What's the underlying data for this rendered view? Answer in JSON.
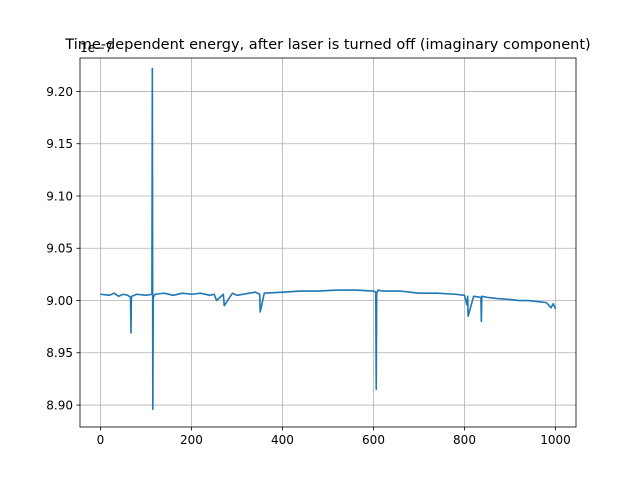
{
  "chart_data": {
    "type": "line",
    "title": "Time-dependent energy, after laser is turned off (imaginary component)",
    "xlabel": "",
    "ylabel": "",
    "y_offset_label": "1e−7",
    "xlim": [
      -45,
      1045
    ],
    "ylim": [
      8.879,
      9.232
    ],
    "grid": true,
    "x_ticks": [
      0,
      200,
      400,
      600,
      800,
      1000
    ],
    "x_tick_labels": [
      "0",
      "200",
      "400",
      "600",
      "800",
      "1000"
    ],
    "y_ticks": [
      8.9,
      8.95,
      9.0,
      9.05,
      9.1,
      9.15,
      9.2
    ],
    "y_tick_labels": [
      "8.90",
      "8.95",
      "9.00",
      "9.05",
      "9.10",
      "9.15",
      "9.20"
    ],
    "series": [
      {
        "name": "",
        "color": "#1f77b4",
        "x": [
          0,
          20,
          30,
          40,
          50,
          60,
          66,
          67,
          68,
          80,
          100,
          113,
          114,
          115,
          116,
          120,
          140,
          160,
          180,
          200,
          220,
          240,
          250,
          255,
          270,
          272,
          290,
          300,
          340,
          350,
          351,
          360,
          400,
          440,
          480,
          520,
          560,
          600,
          605,
          606,
          607,
          610,
          620,
          660,
          700,
          740,
          780,
          800,
          805,
          807,
          808,
          820,
          836,
          837,
          838,
          850,
          870,
          900,
          920,
          940,
          960,
          980,
          990,
          995,
          1000
        ],
        "y": [
          9.006,
          9.005,
          9.007,
          9.004,
          9.006,
          9.005,
          9.003,
          8.969,
          9.004,
          9.006,
          9.005,
          9.006,
          9.222,
          8.896,
          9.003,
          9.006,
          9.007,
          9.005,
          9.007,
          9.006,
          9.007,
          9.005,
          9.006,
          9.0,
          9.006,
          8.995,
          9.007,
          9.005,
          9.008,
          9.006,
          8.989,
          9.007,
          9.008,
          9.009,
          9.009,
          9.01,
          9.01,
          9.009,
          9.008,
          8.915,
          9.007,
          9.01,
          9.009,
          9.009,
          9.007,
          9.007,
          9.006,
          9.005,
          8.996,
          9.004,
          8.985,
          9.004,
          9.003,
          8.98,
          9.004,
          9.003,
          9.002,
          9.001,
          9.0,
          9.0,
          8.999,
          8.998,
          8.993,
          8.997,
          8.992
        ]
      }
    ]
  }
}
